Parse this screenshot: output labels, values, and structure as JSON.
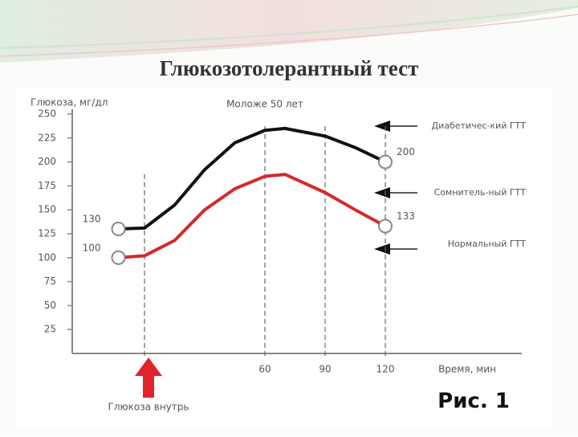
{
  "chart_data": {
    "type": "line",
    "title": "Глюкозотолерантный тест",
    "y_label": "Глюкоза, мг/дл",
    "subtitle": "Моложе 50 лет",
    "x_label": "Время, мин",
    "marker_label": "Глюкоза внутрь",
    "marker_x": 0,
    "figure_label": "Рис. 1",
    "annotations": [
      "Диабетичес-кий ГТТ",
      "Сомнитель-ный ГТТ",
      "Нормальный ГТТ"
    ],
    "x": [
      -13,
      0,
      15,
      30,
      45,
      60,
      70,
      90,
      105,
      120
    ],
    "series": [
      {
        "color": "#111111",
        "values": [
          130,
          131,
          155,
          192,
          220,
          233,
          235,
          227,
          215,
          200
        ]
      },
      {
        "color": "#d42a2a",
        "values": [
          100,
          102,
          118,
          150,
          172,
          185,
          187,
          168,
          150,
          133
        ]
      }
    ],
    "xlim": [
      -36,
      188
    ],
    "xticks": [
      60,
      90,
      120
    ],
    "ylim": [
      0,
      250
    ],
    "yticks": [
      25,
      50,
      75,
      100,
      125,
      150,
      175,
      200,
      225,
      250
    ],
    "grid": true
  }
}
